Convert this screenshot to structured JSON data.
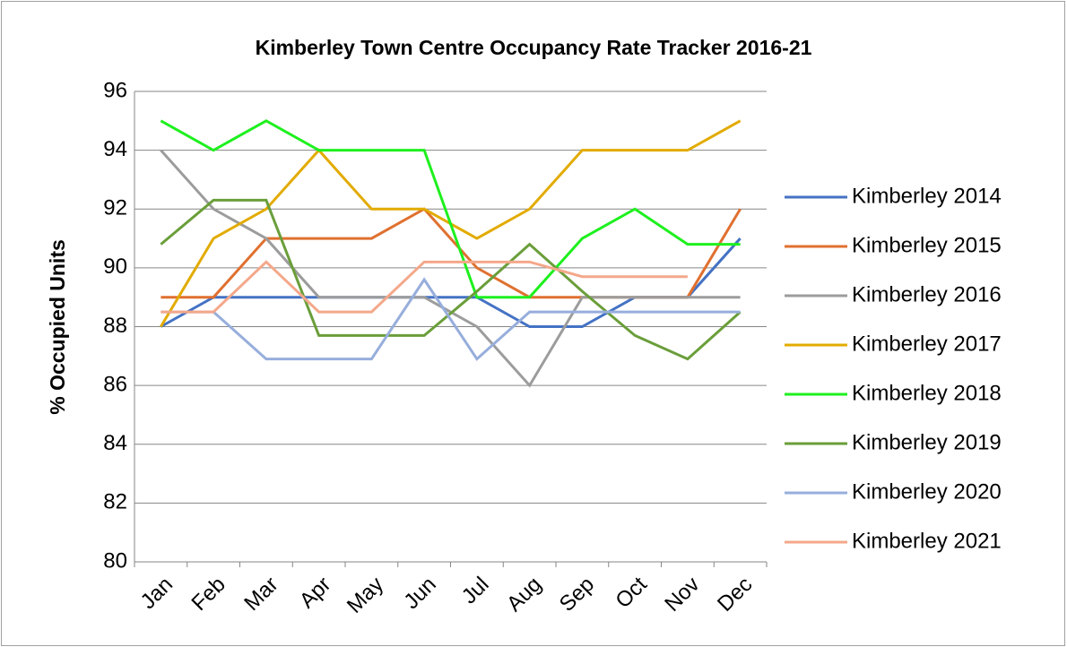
{
  "chart_data": {
    "type": "line",
    "title": "Kimberley Town Centre Occupancy Rate Tracker 2016-21",
    "y_label": "% Occupied Units",
    "categories": [
      "Jan",
      "Feb",
      "Mar",
      "Apr",
      "May",
      "Jun",
      "Jul",
      "Aug",
      "Sep",
      "Oct",
      "Nov",
      "Dec"
    ],
    "ylim": [
      80,
      96
    ],
    "yticks": [
      80,
      82,
      84,
      86,
      88,
      90,
      92,
      94,
      96
    ],
    "grid": true,
    "legend": "right",
    "series": [
      {
        "name": "Kimberley 2014",
        "color": "#4472c4",
        "values": [
          88,
          89,
          89,
          89,
          89,
          89,
          89,
          88,
          88,
          89,
          89,
          91
        ]
      },
      {
        "name": "Kimberley 2015",
        "color": "#e0702f",
        "values": [
          89,
          89,
          91,
          91,
          91,
          92,
          90,
          89,
          89,
          89,
          89,
          92
        ]
      },
      {
        "name": "Kimberley 2016",
        "color": "#9c9c9c",
        "values": [
          94,
          92,
          91,
          89,
          89,
          89,
          88,
          86,
          89,
          89,
          89,
          89
        ]
      },
      {
        "name": "Kimberley 2017",
        "color": "#e2ab00",
        "values": [
          88,
          91,
          92,
          94,
          92,
          92,
          91,
          92,
          94,
          94,
          94,
          95
        ]
      },
      {
        "name": "Kimberley 2018",
        "color": "#1ef01e",
        "values": [
          95,
          94,
          95,
          94,
          94,
          94,
          89,
          89,
          91,
          92,
          90.8,
          90.8
        ]
      },
      {
        "name": "Kimberley 2019",
        "color": "#6a9e3a",
        "values": [
          90.8,
          92.3,
          92.3,
          87.7,
          87.7,
          87.7,
          89.2,
          90.8,
          89.2,
          87.7,
          86.9,
          88.5
        ]
      },
      {
        "name": "Kimberley 2020",
        "color": "#97aedc",
        "values": [
          88.5,
          88.5,
          86.9,
          86.9,
          86.9,
          89.6,
          86.9,
          88.5,
          88.5,
          88.5,
          88.5,
          88.5
        ]
      },
      {
        "name": "Kimberley 2021",
        "color": "#f4a88a",
        "values": [
          88.5,
          88.5,
          90.2,
          88.5,
          88.5,
          90.2,
          90.2,
          90.2,
          89.7,
          89.7,
          89.7,
          null
        ]
      }
    ]
  }
}
